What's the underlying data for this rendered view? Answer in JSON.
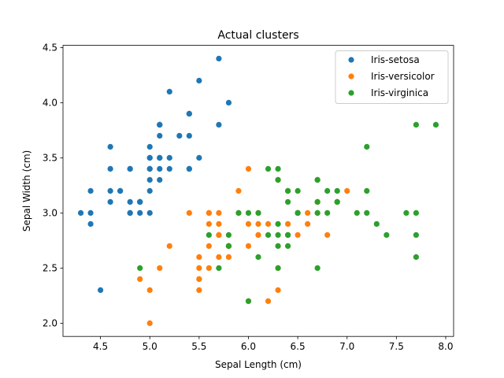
{
  "chart_data": {
    "type": "scatter",
    "title": "Actual clusters",
    "xlabel": "Sepal Length (cm)",
    "ylabel": "Sepal Width (cm)",
    "xlim": [
      4.12,
      8.08
    ],
    "ylim": [
      1.88,
      4.52
    ],
    "xticks": [
      4.5,
      5.0,
      5.5,
      6.0,
      6.5,
      7.0,
      7.5,
      8.0
    ],
    "yticks": [
      2.0,
      2.5,
      3.0,
      3.5,
      4.0,
      4.5
    ],
    "grid": false,
    "legend_position": "top-right",
    "series": [
      {
        "name": "Iris-setosa",
        "color": "#1f77b4",
        "points": [
          [
            5.1,
            3.5
          ],
          [
            4.9,
            3.0
          ],
          [
            4.7,
            3.2
          ],
          [
            4.6,
            3.1
          ],
          [
            5.0,
            3.6
          ],
          [
            5.4,
            3.9
          ],
          [
            4.6,
            3.4
          ],
          [
            5.0,
            3.4
          ],
          [
            4.4,
            2.9
          ],
          [
            4.9,
            3.1
          ],
          [
            5.4,
            3.7
          ],
          [
            4.8,
            3.4
          ],
          [
            4.8,
            3.0
          ],
          [
            4.3,
            3.0
          ],
          [
            5.8,
            4.0
          ],
          [
            5.7,
            4.4
          ],
          [
            5.4,
            3.9
          ],
          [
            5.1,
            3.5
          ],
          [
            5.7,
            3.8
          ],
          [
            5.1,
            3.8
          ],
          [
            5.4,
            3.4
          ],
          [
            5.1,
            3.7
          ],
          [
            4.6,
            3.6
          ],
          [
            5.1,
            3.3
          ],
          [
            4.8,
            3.4
          ],
          [
            5.0,
            3.0
          ],
          [
            5.0,
            3.4
          ],
          [
            5.2,
            3.5
          ],
          [
            5.2,
            3.4
          ],
          [
            4.7,
            3.2
          ],
          [
            4.8,
            3.1
          ],
          [
            5.4,
            3.4
          ],
          [
            5.2,
            4.1
          ],
          [
            5.5,
            4.2
          ],
          [
            4.9,
            3.1
          ],
          [
            5.0,
            3.2
          ],
          [
            5.5,
            3.5
          ],
          [
            4.9,
            3.1
          ],
          [
            4.4,
            3.0
          ],
          [
            5.1,
            3.4
          ],
          [
            5.0,
            3.5
          ],
          [
            4.5,
            2.3
          ],
          [
            4.4,
            3.2
          ],
          [
            5.0,
            3.5
          ],
          [
            5.1,
            3.8
          ],
          [
            4.8,
            3.0
          ],
          [
            5.1,
            3.8
          ],
          [
            4.6,
            3.2
          ],
          [
            5.3,
            3.7
          ],
          [
            5.0,
            3.3
          ]
        ]
      },
      {
        "name": "Iris-versicolor",
        "color": "#ff7f0e",
        "points": [
          [
            7.0,
            3.2
          ],
          [
            6.4,
            3.2
          ],
          [
            6.9,
            3.1
          ],
          [
            5.5,
            2.3
          ],
          [
            6.5,
            2.8
          ],
          [
            5.7,
            2.8
          ],
          [
            6.3,
            3.3
          ],
          [
            4.9,
            2.4
          ],
          [
            6.6,
            2.9
          ],
          [
            5.2,
            2.7
          ],
          [
            5.0,
            2.0
          ],
          [
            5.9,
            3.0
          ],
          [
            6.0,
            2.2
          ],
          [
            6.1,
            2.9
          ],
          [
            5.6,
            2.9
          ],
          [
            6.7,
            3.1
          ],
          [
            5.6,
            3.0
          ],
          [
            5.8,
            2.7
          ],
          [
            6.2,
            2.2
          ],
          [
            5.6,
            2.5
          ],
          [
            5.9,
            3.2
          ],
          [
            6.1,
            2.8
          ],
          [
            6.3,
            2.5
          ],
          [
            6.1,
            2.8
          ],
          [
            6.4,
            2.9
          ],
          [
            6.6,
            3.0
          ],
          [
            6.8,
            2.8
          ],
          [
            6.7,
            3.0
          ],
          [
            6.0,
            2.9
          ],
          [
            5.7,
            2.6
          ],
          [
            5.5,
            2.4
          ],
          [
            5.5,
            2.4
          ],
          [
            5.8,
            2.7
          ],
          [
            6.0,
            2.7
          ],
          [
            5.4,
            3.0
          ],
          [
            6.0,
            3.4
          ],
          [
            6.7,
            3.1
          ],
          [
            6.3,
            2.3
          ],
          [
            5.6,
            3.0
          ],
          [
            5.5,
            2.5
          ],
          [
            5.5,
            2.6
          ],
          [
            6.1,
            3.0
          ],
          [
            5.8,
            2.6
          ],
          [
            5.0,
            2.3
          ],
          [
            5.6,
            2.7
          ],
          [
            5.7,
            3.0
          ],
          [
            5.7,
            2.9
          ],
          [
            6.2,
            2.9
          ],
          [
            5.1,
            2.5
          ],
          [
            5.7,
            2.8
          ]
        ]
      },
      {
        "name": "Iris-virginica",
        "color": "#2ca02c",
        "points": [
          [
            6.3,
            3.3
          ],
          [
            5.8,
            2.7
          ],
          [
            7.1,
            3.0
          ],
          [
            6.3,
            2.9
          ],
          [
            6.5,
            3.0
          ],
          [
            7.6,
            3.0
          ],
          [
            4.9,
            2.5
          ],
          [
            7.3,
            2.9
          ],
          [
            6.7,
            2.5
          ],
          [
            7.2,
            3.6
          ],
          [
            6.5,
            3.2
          ],
          [
            6.4,
            2.7
          ],
          [
            6.8,
            3.0
          ],
          [
            5.7,
            2.5
          ],
          [
            5.8,
            2.8
          ],
          [
            6.4,
            3.2
          ],
          [
            6.5,
            3.0
          ],
          [
            7.7,
            3.8
          ],
          [
            7.7,
            2.6
          ],
          [
            6.0,
            2.2
          ],
          [
            6.9,
            3.2
          ],
          [
            5.6,
            2.8
          ],
          [
            7.7,
            2.8
          ],
          [
            6.3,
            2.7
          ],
          [
            6.7,
            3.3
          ],
          [
            7.2,
            3.2
          ],
          [
            6.2,
            2.8
          ],
          [
            6.1,
            3.0
          ],
          [
            6.4,
            2.8
          ],
          [
            7.2,
            3.0
          ],
          [
            7.4,
            2.8
          ],
          [
            7.9,
            3.8
          ],
          [
            6.4,
            2.8
          ],
          [
            6.3,
            2.8
          ],
          [
            6.1,
            2.6
          ],
          [
            7.7,
            3.0
          ],
          [
            6.3,
            3.4
          ],
          [
            6.4,
            3.1
          ],
          [
            6.0,
            3.0
          ],
          [
            6.9,
            3.1
          ],
          [
            6.7,
            3.1
          ],
          [
            6.9,
            3.1
          ],
          [
            5.8,
            2.7
          ],
          [
            6.8,
            3.2
          ],
          [
            6.7,
            3.3
          ],
          [
            6.7,
            3.0
          ],
          [
            6.3,
            2.5
          ],
          [
            6.5,
            3.0
          ],
          [
            6.2,
            3.4
          ],
          [
            5.9,
            3.0
          ]
        ]
      }
    ]
  }
}
